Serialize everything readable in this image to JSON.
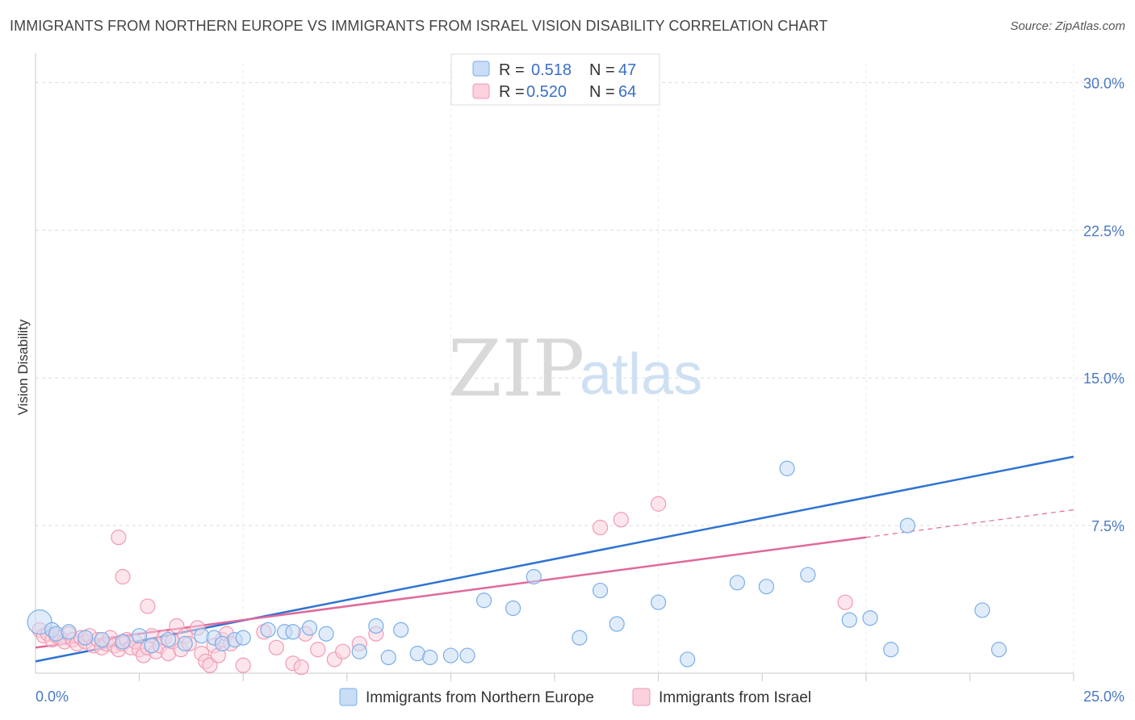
{
  "chart_data": {
    "type": "scatter",
    "title": "IMMIGRANTS FROM NORTHERN EUROPE VS IMMIGRANTS FROM ISRAEL VISION DISABILITY CORRELATION CHART",
    "source": "Source: ZipAtlas.com",
    "xlabel": "",
    "ylabel": "Vision Disability",
    "xlim": [
      0,
      25
    ],
    "ylim": [
      0,
      31
    ],
    "x_tick_labels": [
      "0.0%",
      "25.0%"
    ],
    "y_ticks": [
      7.5,
      15.0,
      22.5,
      30.0
    ],
    "y_tick_labels": [
      "7.5%",
      "15.0%",
      "22.5%",
      "30.0%"
    ],
    "grid": true,
    "watermark": {
      "zip": "ZIP",
      "atlas": "atlas"
    },
    "legend_stats": [
      {
        "r_label": "R =",
        "r_value": "0.518",
        "n_label": "N =",
        "n_value": "47"
      },
      {
        "r_label": "R =",
        "r_value": "0.520",
        "n_label": "N =",
        "n_value": "64"
      }
    ],
    "series": [
      {
        "name": "Immigrants from Northern Europe",
        "color": "#7aaee8",
        "fill": "#c9ddf6",
        "trend": {
          "x": [
            0,
            25
          ],
          "y": [
            0.6,
            11.0
          ],
          "color": "#2f73d0"
        },
        "points": [
          [
            0.1,
            2.6
          ],
          [
            0.4,
            2.2
          ],
          [
            0.5,
            2.0
          ],
          [
            0.8,
            2.1
          ],
          [
            1.2,
            1.8
          ],
          [
            1.6,
            1.7
          ],
          [
            2.1,
            1.6
          ],
          [
            2.5,
            1.9
          ],
          [
            2.8,
            1.4
          ],
          [
            3.2,
            1.7
          ],
          [
            3.6,
            1.5
          ],
          [
            4.0,
            1.9
          ],
          [
            4.3,
            1.8
          ],
          [
            4.5,
            1.5
          ],
          [
            4.8,
            1.7
          ],
          [
            5.0,
            1.8
          ],
          [
            5.6,
            2.2
          ],
          [
            6.0,
            2.1
          ],
          [
            6.2,
            2.1
          ],
          [
            6.6,
            2.3
          ],
          [
            7.0,
            2.0
          ],
          [
            7.8,
            1.1
          ],
          [
            8.2,
            2.4
          ],
          [
            8.5,
            0.8
          ],
          [
            8.8,
            2.2
          ],
          [
            9.2,
            1.0
          ],
          [
            9.5,
            0.8
          ],
          [
            10.0,
            0.9
          ],
          [
            10.4,
            0.9
          ],
          [
            10.8,
            3.7
          ],
          [
            11.5,
            3.3
          ],
          [
            12.0,
            4.9
          ],
          [
            13.1,
            1.8
          ],
          [
            13.6,
            4.2
          ],
          [
            14.0,
            2.5
          ],
          [
            15.0,
            3.6
          ],
          [
            15.7,
            0.7
          ],
          [
            16.9,
            4.6
          ],
          [
            17.6,
            4.4
          ],
          [
            18.1,
            10.4
          ],
          [
            18.6,
            5.0
          ],
          [
            19.6,
            2.7
          ],
          [
            20.1,
            2.8
          ],
          [
            20.6,
            1.2
          ],
          [
            21.0,
            7.5
          ],
          [
            22.8,
            3.2
          ],
          [
            23.2,
            1.2
          ]
        ]
      },
      {
        "name": "Immigrants from Israel",
        "color": "#f19ab4",
        "fill": "#fad1dd",
        "trend": {
          "x": [
            0,
            20
          ],
          "y": [
            1.3,
            6.9
          ],
          "color": "#e0699a"
        },
        "trend_ext": {
          "x": [
            20,
            25
          ],
          "y": [
            6.9,
            8.3
          ]
        },
        "points": [
          [
            0.1,
            2.2
          ],
          [
            0.2,
            1.9
          ],
          [
            0.3,
            2.0
          ],
          [
            0.4,
            1.7
          ],
          [
            0.5,
            1.9
          ],
          [
            0.6,
            1.8
          ],
          [
            0.7,
            1.6
          ],
          [
            0.8,
            2.0
          ],
          [
            0.9,
            1.7
          ],
          [
            1.0,
            1.5
          ],
          [
            1.1,
            1.8
          ],
          [
            1.2,
            1.6
          ],
          [
            1.3,
            1.9
          ],
          [
            1.4,
            1.4
          ],
          [
            1.5,
            1.7
          ],
          [
            1.6,
            1.3
          ],
          [
            1.7,
            1.5
          ],
          [
            1.8,
            1.8
          ],
          [
            1.9,
            1.4
          ],
          [
            2.0,
            1.2
          ],
          [
            2.1,
            1.5
          ],
          [
            2.2,
            1.7
          ],
          [
            2.3,
            1.3
          ],
          [
            2.4,
            1.6
          ],
          [
            2.5,
            1.2
          ],
          [
            2.6,
            0.9
          ],
          [
            2.7,
            1.3
          ],
          [
            2.8,
            1.9
          ],
          [
            2.9,
            1.1
          ],
          [
            3.0,
            1.4
          ],
          [
            3.1,
            1.8
          ],
          [
            3.2,
            1.0
          ],
          [
            3.3,
            1.6
          ],
          [
            3.4,
            2.4
          ],
          [
            3.5,
            1.2
          ],
          [
            3.6,
            1.9
          ],
          [
            3.7,
            1.5
          ],
          [
            3.9,
            2.3
          ],
          [
            4.0,
            1.0
          ],
          [
            4.1,
            0.6
          ],
          [
            4.2,
            0.4
          ],
          [
            4.3,
            1.4
          ],
          [
            4.4,
            0.9
          ],
          [
            4.5,
            1.7
          ],
          [
            4.6,
            2.0
          ],
          [
            4.7,
            1.5
          ],
          [
            5.0,
            0.4
          ],
          [
            5.5,
            2.1
          ],
          [
            5.8,
            1.3
          ],
          [
            6.2,
            0.5
          ],
          [
            6.4,
            0.3
          ],
          [
            6.5,
            2.0
          ],
          [
            6.8,
            1.2
          ],
          [
            7.2,
            0.7
          ],
          [
            7.4,
            1.1
          ],
          [
            7.8,
            1.5
          ],
          [
            8.2,
            2.0
          ],
          [
            2.0,
            6.9
          ],
          [
            2.1,
            4.9
          ],
          [
            2.7,
            3.4
          ],
          [
            13.6,
            7.4
          ],
          [
            14.1,
            7.8
          ],
          [
            15.0,
            8.6
          ],
          [
            19.5,
            3.6
          ]
        ]
      }
    ]
  }
}
